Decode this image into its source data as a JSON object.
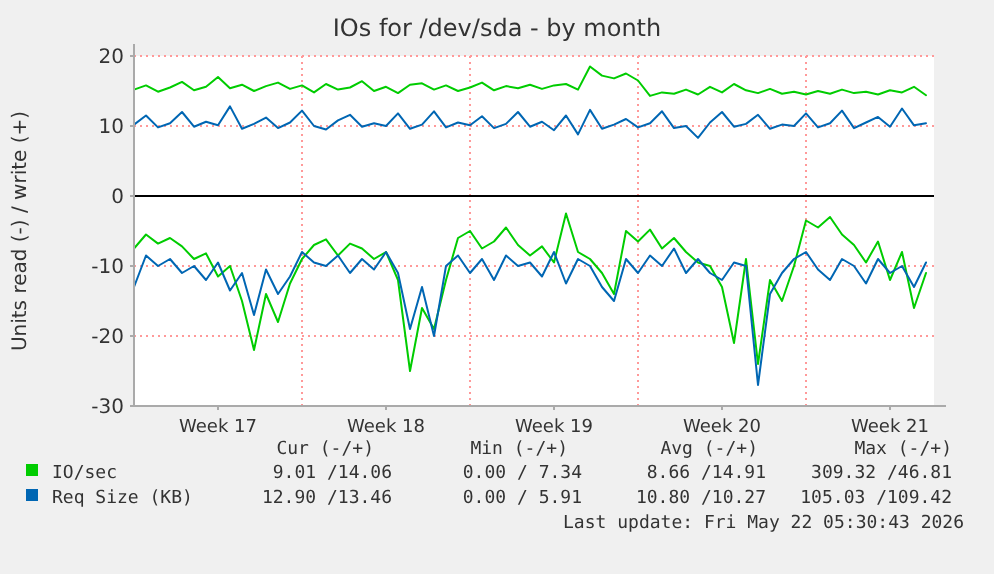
{
  "chart_data": {
    "type": "line",
    "title": "IOs for /dev/sda - by month",
    "ylabel": "Units read (-) / write (+)",
    "categories": [
      null,
      null,
      null,
      null,
      null,
      null,
      null,
      "Week 17",
      null,
      null,
      null,
      null,
      null,
      null,
      null,
      null,
      null,
      null,
      null,
      null,
      null,
      "Week 18",
      null,
      null,
      null,
      null,
      null,
      null,
      null,
      null,
      null,
      null,
      null,
      null,
      null,
      "Week 19",
      null,
      null,
      null,
      null,
      null,
      null,
      null,
      null,
      null,
      null,
      null,
      null,
      null,
      "Week 20",
      null,
      null,
      null,
      null,
      null,
      null,
      null,
      null,
      null,
      null,
      null,
      null,
      null,
      "Week 21",
      null,
      null,
      null
    ],
    "ylim": [
      -30,
      20
    ],
    "yticks": [
      -30,
      -20,
      -10,
      0,
      10,
      20
    ],
    "grid": true,
    "legend": "bottom",
    "ref_lines": [
      {
        "axis": "y",
        "value": 0,
        "color": "#000000"
      }
    ],
    "series": [
      {
        "name": "IO/sec",
        "color": "#00cc00",
        "values": [
          15.2,
          15.8,
          14.9,
          15.5,
          16.3,
          15.1,
          15.6,
          17.0,
          15.4,
          15.9,
          15.0,
          15.7,
          16.2,
          15.3,
          15.8,
          14.8,
          16.0,
          15.2,
          15.5,
          16.4,
          15.0,
          15.6,
          14.7,
          15.9,
          16.1,
          15.2,
          15.8,
          15.0,
          15.5,
          16.2,
          15.1,
          15.7,
          15.4,
          15.9,
          15.3,
          15.8,
          16.0,
          15.2,
          18.5,
          17.2,
          16.8,
          17.5,
          16.5,
          14.3,
          14.8,
          14.6,
          15.2,
          14.5,
          15.6,
          14.8,
          16.0,
          15.1,
          14.7,
          15.3,
          14.6,
          14.9,
          14.5,
          15.0,
          14.6,
          15.2,
          14.7,
          14.9,
          14.5,
          15.1,
          14.8,
          15.6,
          14.4
        ]
      },
      {
        "color": "#00cc00",
        "values": [
          -7.5,
          -5.5,
          -6.8,
          -6.0,
          -7.2,
          -9.0,
          -8.2,
          -11.5,
          -10.0,
          -15.0,
          -22.0,
          -14.0,
          -18.0,
          -12.5,
          -9.0,
          -7.0,
          -6.2,
          -8.5,
          -6.8,
          -7.5,
          -9.0,
          -8.0,
          -12.0,
          -25.0,
          -16.0,
          -19.0,
          -12.0,
          -6.0,
          -5.0,
          -7.5,
          -6.5,
          -4.5,
          -7.0,
          -8.5,
          -7.2,
          -9.5,
          -2.5,
          -8.0,
          -9.0,
          -11.0,
          -14.0,
          -5.0,
          -6.5,
          -4.8,
          -7.5,
          -6.0,
          -8.0,
          -9.5,
          -10.0,
          -13.0,
          -21.0,
          -9.0,
          -24.0,
          -12.0,
          -15.0,
          -10.0,
          -3.5,
          -4.5,
          -3.0,
          -5.5,
          -7.0,
          -9.5,
          -6.5,
          -12.0,
          -8.0,
          -16.0,
          -11.0
        ]
      },
      {
        "name": "Req Size (KB)",
        "color": "#0066b3",
        "values": [
          10.2,
          11.5,
          9.8,
          10.4,
          12.0,
          9.9,
          10.6,
          10.1,
          12.8,
          9.6,
          10.3,
          11.2,
          9.7,
          10.5,
          12.2,
          10.0,
          9.5,
          10.8,
          11.6,
          9.9,
          10.4,
          10.0,
          11.8,
          9.6,
          10.2,
          12.1,
          9.8,
          10.5,
          10.1,
          11.4,
          9.7,
          10.3,
          12.0,
          9.9,
          10.6,
          9.4,
          11.5,
          8.8,
          12.3,
          9.6,
          10.2,
          11.0,
          9.8,
          10.4,
          12.1,
          9.7,
          10.0,
          8.3,
          10.5,
          12.0,
          9.9,
          10.3,
          11.6,
          9.6,
          10.2,
          10.0,
          11.8,
          9.8,
          10.4,
          12.2,
          9.7,
          10.5,
          11.3,
          9.9,
          12.5,
          10.1,
          10.4
        ]
      },
      {
        "color": "#0066b3",
        "values": [
          -13.0,
          -8.5,
          -10.0,
          -9.0,
          -11.0,
          -10.0,
          -12.0,
          -9.5,
          -13.5,
          -11.0,
          -17.0,
          -10.5,
          -14.0,
          -11.5,
          -8.0,
          -9.5,
          -10.0,
          -8.5,
          -11.0,
          -9.0,
          -10.5,
          -8.0,
          -11.0,
          -19.0,
          -13.0,
          -20.0,
          -10.0,
          -8.5,
          -11.0,
          -9.0,
          -12.0,
          -8.5,
          -10.0,
          -9.5,
          -11.5,
          -8.0,
          -12.5,
          -9.0,
          -10.0,
          -13.0,
          -15.0,
          -9.0,
          -11.0,
          -8.5,
          -10.0,
          -7.5,
          -11.0,
          -9.0,
          -11.0,
          -12.0,
          -9.5,
          -10.0,
          -27.0,
          -14.0,
          -11.0,
          -9.0,
          -8.0,
          -10.5,
          -12.0,
          -9.0,
          -10.0,
          -12.5,
          -9.0,
          -11.0,
          -10.0,
          -13.0,
          -9.5
        ]
      }
    ],
    "annotations": [
      "Cur (-/+)",
      "Min (-/+)",
      "Avg (-/+)",
      "Max (-/+)",
      "9.01 /14.06",
      "0.00 / 7.34",
      "8.66 /14.91",
      "309.32 /46.81",
      "12.90 /13.46",
      "0.00 / 5.91",
      "10.80 /10.27",
      "105.03 /109.42",
      "Last update: Fri May 22 05:30:43 2026"
    ]
  }
}
